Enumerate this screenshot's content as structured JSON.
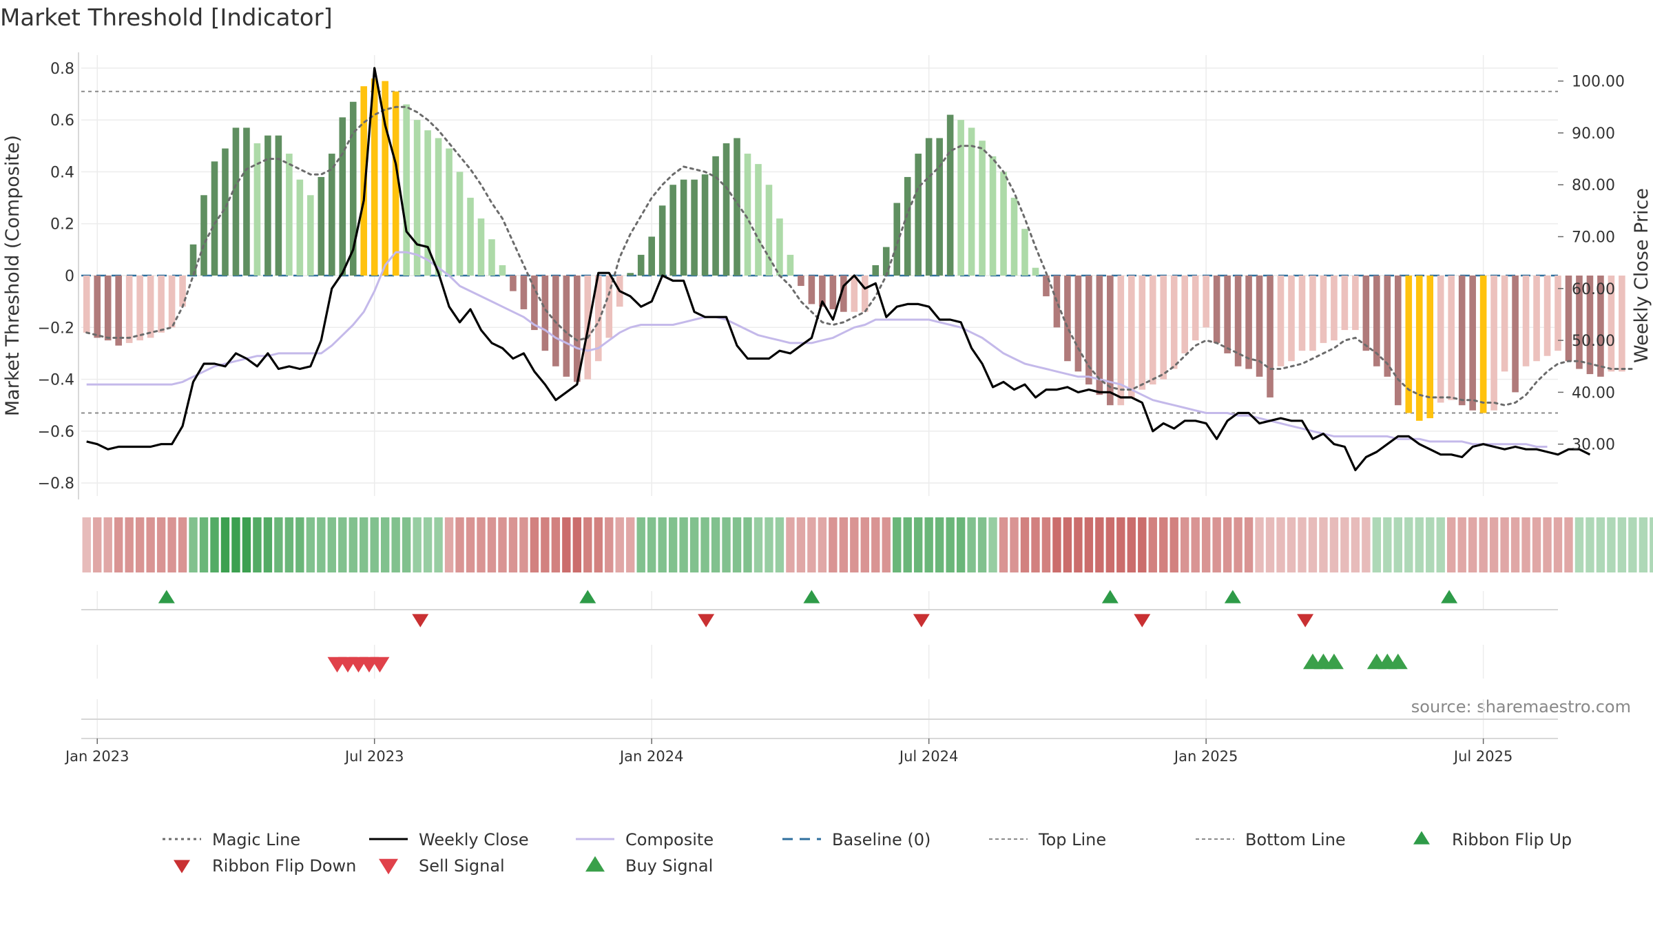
{
  "chart_data": {
    "type": "bar",
    "title": "Market Threshold [Indicator]",
    "source": "source: sharemaestro.com",
    "y_left": {
      "label": "Market Threshold (Composite)",
      "range": [
        -0.85,
        0.85
      ],
      "ticks": [
        0.8,
        0.6,
        0.4,
        0.2,
        0,
        -0.2,
        -0.4,
        -0.6,
        -0.8
      ],
      "tick_labels": [
        "0.8",
        "0.6",
        "0.4",
        "0.2",
        "0",
        "−0.2",
        "−0.4",
        "−0.6",
        "−0.8"
      ]
    },
    "y_right": {
      "label": "Weekly Close Price",
      "range": [
        20,
        105
      ],
      "ticks": [
        100,
        90,
        80,
        70,
        60,
        50,
        40,
        30
      ],
      "tick_labels": [
        "100.00",
        "90.00",
        "80.00",
        "70.00",
        "60.00",
        "50.00",
        "40.00",
        "30.00"
      ]
    },
    "x_axis": {
      "range_weeks": [
        0,
        138.5
      ],
      "ticks": [
        {
          "label": "Jan 2023",
          "week": 1.5
        },
        {
          "label": "Jul 2023",
          "week": 27.5
        },
        {
          "label": "Jan 2024",
          "week": 53.5
        },
        {
          "label": "Jul 2024",
          "week": 79.5
        },
        {
          "label": "Jan 2025",
          "week": 105.5
        },
        {
          "label": "Jul 2025",
          "week": 131.5
        }
      ]
    },
    "reference_lines": {
      "top_line": 0.71,
      "bottom_line": -0.53,
      "baseline": 0
    },
    "composite_bars": [
      -0.22,
      -0.24,
      -0.25,
      -0.27,
      -0.26,
      -0.25,
      -0.24,
      -0.22,
      -0.2,
      -0.12,
      0.12,
      0.31,
      0.44,
      0.49,
      0.57,
      0.57,
      0.51,
      0.54,
      0.54,
      0.47,
      0.37,
      0.31,
      0.38,
      0.47,
      0.61,
      0.67,
      0.73,
      0.76,
      0.75,
      0.71,
      0.66,
      0.6,
      0.56,
      0.53,
      0.49,
      0.4,
      0.3,
      0.22,
      0.14,
      0.04,
      -0.06,
      -0.13,
      -0.21,
      -0.29,
      -0.35,
      -0.39,
      -0.41,
      -0.4,
      -0.33,
      -0.24,
      -0.12,
      0.01,
      0.08,
      0.15,
      0.27,
      0.35,
      0.37,
      0.37,
      0.39,
      0.46,
      0.51,
      0.53,
      0.47,
      0.43,
      0.35,
      0.22,
      0.08,
      -0.04,
      -0.11,
      -0.12,
      -0.13,
      -0.14,
      -0.14,
      -0.14,
      0.04,
      0.11,
      0.28,
      0.38,
      0.47,
      0.53,
      0.53,
      0.62,
      0.6,
      0.57,
      0.52,
      0.46,
      0.4,
      0.3,
      0.18,
      0.03,
      -0.08,
      -0.2,
      -0.33,
      -0.37,
      -0.42,
      -0.46,
      -0.5,
      -0.5,
      -0.47,
      -0.44,
      -0.42,
      -0.4,
      -0.36,
      -0.3,
      -0.25,
      -0.2,
      -0.26,
      -0.3,
      -0.35,
      -0.36,
      -0.39,
      -0.47,
      -0.35,
      -0.33,
      -0.29,
      -0.29,
      -0.26,
      -0.25,
      -0.21,
      -0.21,
      -0.29,
      -0.35,
      -0.39,
      -0.5,
      -0.53,
      -0.56,
      -0.55,
      -0.49,
      -0.48,
      -0.5,
      -0.52,
      -0.53,
      -0.52,
      -0.37,
      -0.45,
      -0.35,
      -0.33,
      -0.31,
      -0.29,
      -0.33,
      -0.36,
      -0.38,
      -0.39,
      -0.37,
      -0.37
    ],
    "series": [
      {
        "name": "Magic Line",
        "values": [
          -0.22,
          -0.23,
          -0.24,
          -0.24,
          -0.24,
          -0.23,
          -0.22,
          -0.21,
          -0.2,
          -0.12,
          0.0,
          0.12,
          0.2,
          0.26,
          0.35,
          0.41,
          0.43,
          0.45,
          0.45,
          0.43,
          0.41,
          0.39,
          0.39,
          0.41,
          0.47,
          0.55,
          0.59,
          0.62,
          0.64,
          0.65,
          0.65,
          0.63,
          0.6,
          0.56,
          0.51,
          0.46,
          0.41,
          0.35,
          0.28,
          0.22,
          0.13,
          0.04,
          -0.05,
          -0.13,
          -0.18,
          -0.22,
          -0.25,
          -0.24,
          -0.18,
          -0.07,
          0.07,
          0.16,
          0.23,
          0.3,
          0.35,
          0.39,
          0.42,
          0.41,
          0.4,
          0.38,
          0.34,
          0.28,
          0.22,
          0.14,
          0.07,
          0.0,
          -0.04,
          -0.1,
          -0.14,
          -0.18,
          -0.19,
          -0.18,
          -0.16,
          -0.14,
          -0.08,
          0.0,
          0.12,
          0.24,
          0.34,
          0.38,
          0.42,
          0.48,
          0.5,
          0.5,
          0.49,
          0.45,
          0.4,
          0.32,
          0.22,
          0.11,
          0.01,
          -0.1,
          -0.2,
          -0.28,
          -0.35,
          -0.4,
          -0.43,
          -0.44,
          -0.44,
          -0.42,
          -0.4,
          -0.38,
          -0.35,
          -0.31,
          -0.27,
          -0.25,
          -0.26,
          -0.28,
          -0.3,
          -0.32,
          -0.33,
          -0.36,
          -0.36,
          -0.35,
          -0.34,
          -0.32,
          -0.3,
          -0.28,
          -0.25,
          -0.24,
          -0.27,
          -0.3,
          -0.34,
          -0.4,
          -0.44,
          -0.46,
          -0.47,
          -0.47,
          -0.47,
          -0.48,
          -0.48,
          -0.49,
          -0.49,
          -0.5,
          -0.49,
          -0.46,
          -0.41,
          -0.37,
          -0.34,
          -0.33,
          -0.33,
          -0.34,
          -0.35,
          -0.36,
          -0.36,
          -0.36
        ]
      },
      {
        "name": "Weekly Close",
        "values": [
          30.5,
          30,
          29,
          29.5,
          29.5,
          29.5,
          29.5,
          30,
          30,
          33.5,
          42,
          45.5,
          45.5,
          45,
          47.5,
          46.5,
          45,
          47.5,
          44.5,
          45,
          44.5,
          45,
          50,
          60,
          63,
          67.5,
          77,
          102.5,
          91.5,
          84,
          71,
          68.5,
          68,
          63,
          56.5,
          53.5,
          56,
          52,
          49.5,
          48.5,
          46.5,
          47.5,
          44,
          41.5,
          38.5,
          40,
          41.5,
          52,
          63,
          63,
          59.5,
          58.5,
          56.5,
          57.5,
          62.5,
          61.5,
          61.5,
          55.5,
          54.5,
          54.5,
          54.5,
          49,
          46.5,
          46.5,
          46.5,
          48,
          47.5,
          49,
          50.5,
          57.5,
          54,
          60.5,
          62.5,
          60,
          61,
          54.5,
          56.5,
          57,
          57,
          56.5,
          54,
          54,
          53.5,
          48.5,
          45.5,
          41,
          42,
          40.5,
          41.5,
          39,
          40.5,
          40.5,
          41,
          40,
          40.5,
          40,
          40,
          39,
          39,
          38,
          32.5,
          34,
          33,
          34.5,
          34.5,
          34,
          31,
          34.5,
          36,
          36,
          34,
          34.5,
          35,
          34.5,
          34.5,
          31,
          32,
          30,
          29.5,
          25,
          27.5,
          28.5,
          30,
          31.5,
          31.5,
          30,
          29,
          28,
          28,
          27.5,
          29.5,
          30,
          29.5,
          29,
          29.5,
          29,
          29,
          28.5,
          28,
          29,
          29,
          28
        ]
      },
      {
        "name": "Composite",
        "values": [
          -0.42,
          -0.42,
          -0.42,
          -0.42,
          -0.42,
          -0.42,
          -0.42,
          -0.42,
          -0.42,
          -0.41,
          -0.39,
          -0.37,
          -0.35,
          -0.34,
          -0.33,
          -0.32,
          -0.31,
          -0.31,
          -0.3,
          -0.3,
          -0.3,
          -0.3,
          -0.3,
          -0.27,
          -0.23,
          -0.19,
          -0.14,
          -0.06,
          0.04,
          0.09,
          0.09,
          0.08,
          0.06,
          0.03,
          0.0,
          -0.04,
          -0.06,
          -0.08,
          -0.1,
          -0.12,
          -0.14,
          -0.16,
          -0.19,
          -0.21,
          -0.24,
          -0.26,
          -0.28,
          -0.29,
          -0.28,
          -0.25,
          -0.22,
          -0.2,
          -0.19,
          -0.19,
          -0.19,
          -0.19,
          -0.18,
          -0.17,
          -0.16,
          -0.16,
          -0.17,
          -0.19,
          -0.21,
          -0.23,
          -0.24,
          -0.25,
          -0.26,
          -0.26,
          -0.26,
          -0.25,
          -0.24,
          -0.22,
          -0.2,
          -0.19,
          -0.17,
          -0.17,
          -0.17,
          -0.17,
          -0.17,
          -0.17,
          -0.18,
          -0.19,
          -0.2,
          -0.22,
          -0.24,
          -0.27,
          -0.3,
          -0.32,
          -0.34,
          -0.35,
          -0.36,
          -0.37,
          -0.38,
          -0.39,
          -0.39,
          -0.4,
          -0.41,
          -0.42,
          -0.44,
          -0.46,
          -0.48,
          -0.49,
          -0.5,
          -0.51,
          -0.52,
          -0.53,
          -0.53,
          -0.53,
          -0.54,
          -0.54,
          -0.55,
          -0.56,
          -0.57,
          -0.58,
          -0.59,
          -0.6,
          -0.61,
          -0.62,
          -0.62,
          -0.62,
          -0.62,
          -0.62,
          -0.62,
          -0.63,
          -0.63,
          -0.63,
          -0.64,
          -0.64,
          -0.64,
          -0.64,
          -0.65,
          -0.65,
          -0.65,
          -0.65,
          -0.65,
          -0.65,
          -0.66,
          -0.66
        ]
      },
      {
        "name": "Baseline (0)"
      },
      {
        "name": "Top Line"
      },
      {
        "name": "Bottom Line"
      }
    ],
    "ribbon": [
      -1,
      -1.5,
      -1.5,
      -2,
      -2,
      -2,
      -2,
      -2,
      -2,
      -2,
      2,
      2.5,
      3,
      3.5,
      3.5,
      3.5,
      3,
      3,
      2.5,
      2.5,
      2.5,
      2,
      2,
      2,
      2,
      2,
      2,
      2,
      2,
      2,
      2,
      1.5,
      1.5,
      1.5,
      -1.5,
      -2,
      -2,
      -2,
      -2,
      -2,
      -2,
      -2,
      -2.5,
      -2.5,
      -2.5,
      -3,
      -3,
      -2.5,
      -2.5,
      -2,
      -1.5,
      -1.5,
      2,
      2,
      2,
      2,
      2,
      2,
      2,
      2,
      2,
      2,
      2,
      1.5,
      1.5,
      1.5,
      -1.5,
      -1.5,
      -1.5,
      -1.5,
      -2,
      -2,
      -2,
      -2,
      -2,
      -2,
      2.5,
      2.5,
      2.5,
      2.5,
      2.5,
      2.5,
      2.5,
      2,
      2,
      1.5,
      -2,
      -2,
      -2.5,
      -2.5,
      -2.5,
      -3,
      -3,
      -3,
      -3,
      -3,
      -3,
      -3,
      -3,
      -3,
      -2.5,
      -2.5,
      -2.5,
      -2,
      -2,
      -2,
      -2,
      -2,
      -2,
      -2,
      -1,
      -1,
      -1,
      -1,
      -1,
      -1,
      -1,
      -1,
      -1,
      -1,
      -1,
      1,
      1,
      1,
      1,
      1,
      1,
      1,
      -1.5,
      -1.5,
      -1.5,
      -1.5,
      -1.5,
      -1.5,
      -1.5,
      -1.5,
      -1.5,
      -1.5,
      -1.5,
      -1.5,
      1,
      1,
      1,
      1,
      1,
      1,
      1,
      1,
      1,
      1
    ],
    "ribbon_flip_up_weeks": [
      8,
      47.5,
      68.5,
      96.5,
      108,
      128.3
    ],
    "ribbon_flip_down_weeks": [
      31.8,
      58.6,
      78.8,
      99.5,
      114.8
    ],
    "sell_signal_weeks": [
      24,
      25,
      26,
      27,
      28
    ],
    "buy_signal_weeks": [
      115.5,
      116.5,
      117.5,
      121.5,
      122.5,
      123.5
    ],
    "legend": [
      "Magic Line",
      "Weekly Close",
      "Composite",
      "Baseline (0)",
      "Top Line",
      "Bottom Line",
      "Ribbon Flip Up",
      "Ribbon Flip Down",
      "Sell Signal",
      "Buy Signal"
    ],
    "colors": {
      "bar_dark_green": "#5f8f60",
      "bar_light_green": "#addaa8",
      "bar_dark_red": "#b07a7a",
      "bar_light_red": "#ecc1bd",
      "bar_gold": "#ffc20e",
      "weekly_close": "#000000",
      "composite": "#c4b9ea",
      "magic_line": "#6b6b6b",
      "baseline": "#2e6f9e",
      "ref_lines": "#8a8a8a",
      "grid": "#ececec",
      "flip_up": "#2e9b48",
      "flip_down": "#c93032",
      "sell": "#e0414a",
      "buy": "#3aa04a"
    }
  }
}
